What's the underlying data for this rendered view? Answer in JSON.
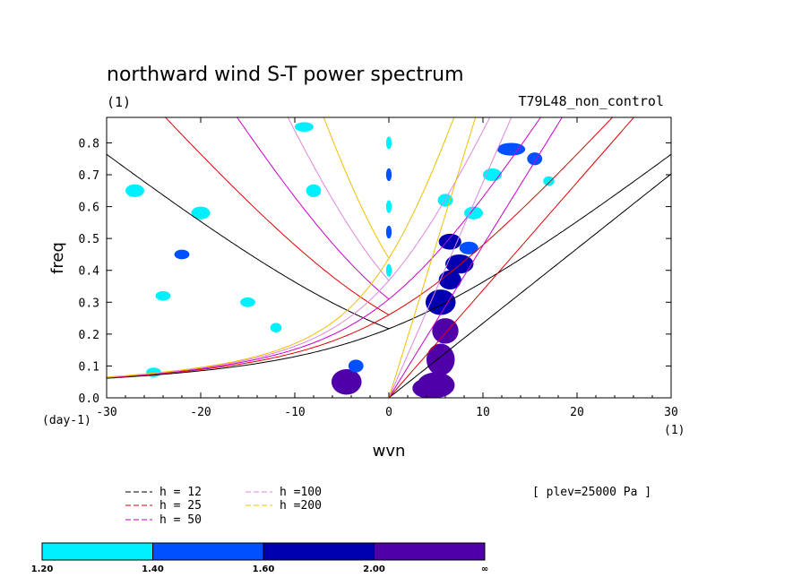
{
  "chart_data": {
    "type": "contour",
    "title": "northward wind S-T power spectrum",
    "units_label": "(1)",
    "run_label": "T79L48_non_control",
    "xlabel": "wvn",
    "ylabel": "freq",
    "x_unit_label": "(1)",
    "y_unit_label": "(day-1)",
    "xlim": [
      -30,
      30
    ],
    "ylim": [
      0,
      0.88
    ],
    "x_ticks": [
      -30,
      -20,
      -10,
      0,
      10,
      20,
      30
    ],
    "x_tick_labels": [
      "-30",
      "-20",
      "-10",
      "0",
      "10",
      "20",
      "30"
    ],
    "y_ticks": [
      0,
      0.1,
      0.2,
      0.3,
      0.4,
      0.5,
      0.6,
      0.7,
      0.8
    ],
    "y_tick_labels": [
      "0.0",
      "0.1",
      "0.2",
      "0.3",
      "0.4",
      "0.5",
      "0.6",
      "0.7",
      "0.8"
    ],
    "plev_label": "[ plev=25000 Pa ]",
    "legend": [
      {
        "label": "h = 12",
        "color": "#000000"
      },
      {
        "label": "h = 25",
        "color": "#e00000"
      },
      {
        "label": "h = 50",
        "color": "#cc00cc"
      },
      {
        "label": "h =100",
        "color": "#dd88dd"
      },
      {
        "label": "h =200",
        "color": "#f0c000"
      }
    ],
    "colorbar": {
      "levels": [
        "1.20",
        "1.40",
        "1.60",
        "2.00",
        "∞"
      ],
      "colors": [
        "#00f0ff",
        "#0050ff",
        "#0000b0",
        "#5000a8"
      ]
    },
    "dispersion_curves": {
      "equivalent_depths_m": [
        12,
        25,
        50,
        100,
        200
      ],
      "colors": [
        "#000000",
        "#e00000",
        "#cc00cc",
        "#dd88dd",
        "#f0c000"
      ]
    },
    "power_patches": [
      {
        "x": 5,
        "y": 0.04,
        "rx": 2,
        "ry": 0.04,
        "level": 3
      },
      {
        "x": 4,
        "y": 0.03,
        "rx": 1.5,
        "ry": 0.03,
        "level": 3
      },
      {
        "x": 5.5,
        "y": 0.12,
        "rx": 1.5,
        "ry": 0.05,
        "level": 3
      },
      {
        "x": 6,
        "y": 0.21,
        "rx": 1.4,
        "ry": 0.04,
        "level": 3
      },
      {
        "x": 5.5,
        "y": 0.3,
        "rx": 1.6,
        "ry": 0.04,
        "level": 2
      },
      {
        "x": 6.5,
        "y": 0.37,
        "rx": 1.2,
        "ry": 0.03,
        "level": 2
      },
      {
        "x": 7.5,
        "y": 0.42,
        "rx": 1.5,
        "ry": 0.03,
        "level": 2
      },
      {
        "x": 6.5,
        "y": 0.49,
        "rx": 1.2,
        "ry": 0.025,
        "level": 2
      },
      {
        "x": 8.5,
        "y": 0.47,
        "rx": 1.0,
        "ry": 0.02,
        "level": 1
      },
      {
        "x": 9,
        "y": 0.58,
        "rx": 1.0,
        "ry": 0.02,
        "level": 0
      },
      {
        "x": 6,
        "y": 0.62,
        "rx": 0.8,
        "ry": 0.02,
        "level": 0
      },
      {
        "x": 11,
        "y": 0.7,
        "rx": 1.0,
        "ry": 0.02,
        "level": 0
      },
      {
        "x": 13,
        "y": 0.78,
        "rx": 1.5,
        "ry": 0.02,
        "level": 1
      },
      {
        "x": 15.5,
        "y": 0.75,
        "rx": 0.8,
        "ry": 0.02,
        "level": 1
      },
      {
        "x": 17,
        "y": 0.68,
        "rx": 0.6,
        "ry": 0.015,
        "level": 0
      },
      {
        "x": -4.5,
        "y": 0.05,
        "rx": 1.6,
        "ry": 0.04,
        "level": 3
      },
      {
        "x": -3.5,
        "y": 0.1,
        "rx": 0.8,
        "ry": 0.02,
        "level": 1
      },
      {
        "x": 0,
        "y": 0.8,
        "rx": 0.3,
        "ry": 0.02,
        "level": 0
      },
      {
        "x": 0,
        "y": 0.7,
        "rx": 0.3,
        "ry": 0.02,
        "level": 1
      },
      {
        "x": 0,
        "y": 0.6,
        "rx": 0.3,
        "ry": 0.02,
        "level": 0
      },
      {
        "x": 0,
        "y": 0.52,
        "rx": 0.3,
        "ry": 0.02,
        "level": 1
      },
      {
        "x": 0,
        "y": 0.4,
        "rx": 0.3,
        "ry": 0.02,
        "level": 0
      },
      {
        "x": -25,
        "y": 0.08,
        "rx": 0.8,
        "ry": 0.015,
        "level": 0
      },
      {
        "x": -27,
        "y": 0.65,
        "rx": 1.0,
        "ry": 0.02,
        "level": 0
      },
      {
        "x": -20,
        "y": 0.58,
        "rx": 1.0,
        "ry": 0.02,
        "level": 0
      },
      {
        "x": -22,
        "y": 0.45,
        "rx": 0.8,
        "ry": 0.015,
        "level": 1
      },
      {
        "x": -15,
        "y": 0.3,
        "rx": 0.8,
        "ry": 0.015,
        "level": 0
      },
      {
        "x": -9,
        "y": 0.85,
        "rx": 1.0,
        "ry": 0.015,
        "level": 0
      },
      {
        "x": -8,
        "y": 0.65,
        "rx": 0.8,
        "ry": 0.02,
        "level": 0
      },
      {
        "x": -12,
        "y": 0.22,
        "rx": 0.6,
        "ry": 0.015,
        "level": 0
      },
      {
        "x": -24,
        "y": 0.32,
        "rx": 0.8,
        "ry": 0.015,
        "level": 0
      }
    ]
  }
}
